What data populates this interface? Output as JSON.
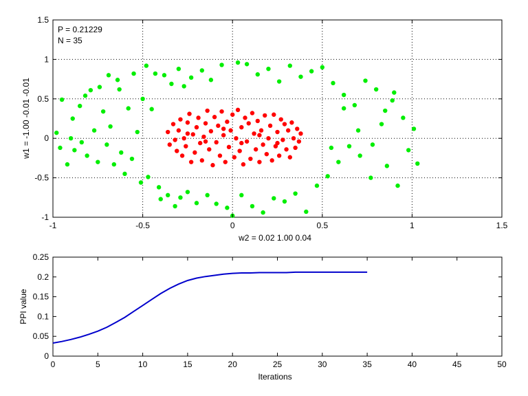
{
  "chart_data": [
    {
      "type": "scatter",
      "annotations": [
        "P = 0.21229",
        "N = 35"
      ],
      "xlabel": "w2 = 0.02  1.00  0.04",
      "ylabel": "w1 = -1.00  -0.01  -0.01",
      "xlim": [
        -1,
        1.5
      ],
      "ylim": [
        -1,
        1.5
      ],
      "xticks": [
        "-1",
        "-0.5",
        "0",
        "0.5",
        "1",
        "1.5"
      ],
      "yticks": [
        "-1",
        "-0.5",
        "0",
        "0.5",
        "1",
        "1.5"
      ],
      "grid": true,
      "grid_style": "dotted",
      "series": [
        {
          "color": "#00ee00",
          "points": [
            [
              -0.98,
              0.07
            ],
            [
              -0.95,
              0.49
            ],
            [
              -0.96,
              -0.12
            ],
            [
              -0.92,
              -0.33
            ],
            [
              -0.9,
              0.0
            ],
            [
              -0.89,
              0.25
            ],
            [
              -0.88,
              -0.15
            ],
            [
              -0.85,
              0.41
            ],
            [
              -0.84,
              -0.05
            ],
            [
              -0.82,
              0.54
            ],
            [
              -0.81,
              -0.22
            ],
            [
              -0.79,
              0.61
            ],
            [
              -0.77,
              0.1
            ],
            [
              -0.75,
              -0.3
            ],
            [
              -0.74,
              0.65
            ],
            [
              -0.72,
              0.34
            ],
            [
              -0.7,
              -0.08
            ],
            [
              -0.69,
              0.8
            ],
            [
              -0.68,
              0.15
            ],
            [
              -0.66,
              -0.33
            ],
            [
              -0.64,
              0.74
            ],
            [
              -0.63,
              0.62
            ],
            [
              -0.62,
              -0.18
            ],
            [
              -0.6,
              -0.45
            ],
            [
              -0.58,
              0.38
            ],
            [
              -0.56,
              -0.26
            ],
            [
              -0.55,
              0.82
            ],
            [
              -0.53,
              0.08
            ],
            [
              -0.51,
              -0.56
            ],
            [
              -0.5,
              0.5
            ],
            [
              -0.48,
              0.92
            ],
            [
              -0.47,
              -0.49
            ],
            [
              -0.45,
              0.37
            ],
            [
              -0.43,
              0.82
            ],
            [
              -0.41,
              -0.62
            ],
            [
              -0.4,
              -0.77
            ],
            [
              -0.38,
              0.8
            ],
            [
              -0.36,
              -0.72
            ],
            [
              -0.34,
              0.69
            ],
            [
              -0.32,
              -0.86
            ],
            [
              -0.3,
              0.88
            ],
            [
              -0.29,
              -0.75
            ],
            [
              -0.27,
              0.66
            ],
            [
              -0.25,
              -0.68
            ],
            [
              -0.23,
              0.77
            ],
            [
              -0.2,
              -0.82
            ],
            [
              -0.17,
              0.86
            ],
            [
              -0.14,
              -0.72
            ],
            [
              -0.12,
              0.74
            ],
            [
              -0.09,
              -0.83
            ],
            [
              -0.06,
              0.93
            ],
            [
              -0.03,
              -0.88
            ],
            [
              0.0,
              -0.98
            ],
            [
              0.03,
              0.96
            ],
            [
              0.05,
              -0.72
            ],
            [
              0.08,
              0.94
            ],
            [
              0.11,
              -0.86
            ],
            [
              0.14,
              0.81
            ],
            [
              0.17,
              -0.94
            ],
            [
              0.2,
              0.88
            ],
            [
              0.23,
              -0.76
            ],
            [
              0.26,
              0.72
            ],
            [
              0.29,
              -0.8
            ],
            [
              0.32,
              0.92
            ],
            [
              0.35,
              -0.7
            ],
            [
              0.38,
              0.78
            ],
            [
              0.41,
              -0.93
            ],
            [
              0.44,
              0.85
            ],
            [
              0.47,
              -0.6
            ],
            [
              0.5,
              0.9
            ],
            [
              0.53,
              -0.48
            ],
            [
              0.56,
              0.7
            ],
            [
              0.59,
              -0.3
            ],
            [
              0.62,
              0.55
            ],
            [
              0.65,
              -0.1
            ],
            [
              0.68,
              0.42
            ],
            [
              0.71,
              -0.22
            ],
            [
              0.74,
              0.73
            ],
            [
              0.77,
              -0.5
            ],
            [
              0.8,
              0.62
            ],
            [
              0.83,
              0.18
            ],
            [
              0.86,
              -0.35
            ],
            [
              0.89,
              0.48
            ],
            [
              0.92,
              -0.6
            ],
            [
              0.95,
              0.26
            ],
            [
              0.98,
              -0.15
            ],
            [
              1.01,
              0.12
            ],
            [
              1.03,
              -0.32
            ],
            [
              0.55,
              -0.12
            ],
            [
              0.62,
              0.38
            ],
            [
              0.7,
              0.1
            ],
            [
              0.78,
              -0.08
            ],
            [
              0.85,
              0.35
            ],
            [
              0.9,
              0.58
            ]
          ]
        },
        {
          "color": "#ff0000",
          "points": [
            [
              -0.36,
              0.08
            ],
            [
              -0.35,
              -0.08
            ],
            [
              -0.33,
              0.18
            ],
            [
              -0.32,
              -0.02
            ],
            [
              -0.31,
              -0.16
            ],
            [
              -0.3,
              0.1
            ],
            [
              -0.29,
              0.24
            ],
            [
              -0.28,
              -0.22
            ],
            [
              -0.27,
              0.0
            ],
            [
              -0.26,
              -0.1
            ],
            [
              -0.25,
              0.2
            ],
            [
              -0.24,
              0.31
            ],
            [
              -0.23,
              -0.3
            ],
            [
              -0.22,
              0.05
            ],
            [
              -0.21,
              -0.18
            ],
            [
              -0.2,
              0.14
            ],
            [
              -0.19,
              0.26
            ],
            [
              -0.18,
              -0.06
            ],
            [
              -0.17,
              -0.28
            ],
            [
              -0.16,
              0.02
            ],
            [
              -0.15,
              0.19
            ],
            [
              -0.14,
              0.35
            ],
            [
              -0.13,
              -0.14
            ],
            [
              -0.12,
              0.09
            ],
            [
              -0.11,
              -0.34
            ],
            [
              -0.1,
              0.27
            ],
            [
              -0.09,
              -0.05
            ],
            [
              -0.08,
              0.16
            ],
            [
              -0.07,
              -0.22
            ],
            [
              -0.06,
              0.34
            ],
            [
              -0.05,
              0.04
            ],
            [
              -0.04,
              -0.3
            ],
            [
              -0.03,
              0.21
            ],
            [
              -0.02,
              -0.11
            ],
            [
              -0.01,
              0.1
            ],
            [
              0.0,
              0.3
            ],
            [
              0.01,
              -0.24
            ],
            [
              0.02,
              0.0
            ],
            [
              0.03,
              0.36
            ],
            [
              0.04,
              -0.16
            ],
            [
              0.05,
              0.14
            ],
            [
              0.06,
              -0.33
            ],
            [
              0.07,
              0.26
            ],
            [
              0.08,
              -0.04
            ],
            [
              0.09,
              0.19
            ],
            [
              0.1,
              -0.26
            ],
            [
              0.11,
              0.32
            ],
            [
              0.12,
              0.06
            ],
            [
              0.13,
              -0.14
            ],
            [
              0.14,
              0.22
            ],
            [
              0.15,
              -0.3
            ],
            [
              0.16,
              0.1
            ],
            [
              0.17,
              -0.08
            ],
            [
              0.18,
              0.29
            ],
            [
              0.19,
              -0.2
            ],
            [
              0.2,
              0.0
            ],
            [
              0.21,
              0.16
            ],
            [
              0.22,
              -0.28
            ],
            [
              0.23,
              0.3
            ],
            [
              0.24,
              -0.1
            ],
            [
              0.25,
              0.08
            ],
            [
              0.26,
              -0.22
            ],
            [
              0.27,
              0.24
            ],
            [
              0.28,
              -0.02
            ],
            [
              0.29,
              0.18
            ],
            [
              0.3,
              -0.14
            ],
            [
              0.31,
              0.1
            ],
            [
              0.32,
              -0.24
            ],
            [
              0.33,
              0.2
            ],
            [
              0.34,
              0.0
            ],
            [
              0.35,
              -0.12
            ],
            [
              0.36,
              0.12
            ],
            [
              0.37,
              -0.04
            ],
            [
              0.38,
              0.06
            ],
            [
              -0.05,
              0.12
            ],
            [
              0.05,
              -0.06
            ],
            [
              -0.15,
              -0.04
            ],
            [
              0.15,
              0.04
            ],
            [
              -0.25,
              0.06
            ],
            [
              0.25,
              -0.06
            ]
          ]
        }
      ]
    },
    {
      "type": "line",
      "xlabel": "Iterations",
      "ylabel": "PPI value",
      "xlim": [
        0,
        50
      ],
      "ylim": [
        0,
        0.25
      ],
      "xticks": [
        "0",
        "5",
        "10",
        "15",
        "20",
        "25",
        "30",
        "35",
        "40",
        "45",
        "50"
      ],
      "yticks": [
        "0",
        "0.05",
        "0.1",
        "0.15",
        "0.2",
        "0.25"
      ],
      "series": [
        {
          "color": "#0000cc",
          "x": [
            0,
            1,
            2,
            3,
            4,
            5,
            6,
            7,
            8,
            9,
            10,
            11,
            12,
            13,
            14,
            15,
            16,
            17,
            18,
            19,
            20,
            21,
            22,
            23,
            24,
            25,
            26,
            27,
            28,
            29,
            30,
            31,
            32,
            33,
            34,
            35
          ],
          "y": [
            0.033,
            0.037,
            0.042,
            0.048,
            0.055,
            0.063,
            0.073,
            0.085,
            0.098,
            0.113,
            0.128,
            0.143,
            0.158,
            0.171,
            0.182,
            0.191,
            0.197,
            0.201,
            0.204,
            0.207,
            0.209,
            0.21,
            0.21,
            0.211,
            0.211,
            0.211,
            0.211,
            0.212,
            0.212,
            0.212,
            0.212,
            0.212,
            0.212,
            0.212,
            0.212,
            0.212
          ]
        }
      ]
    }
  ]
}
